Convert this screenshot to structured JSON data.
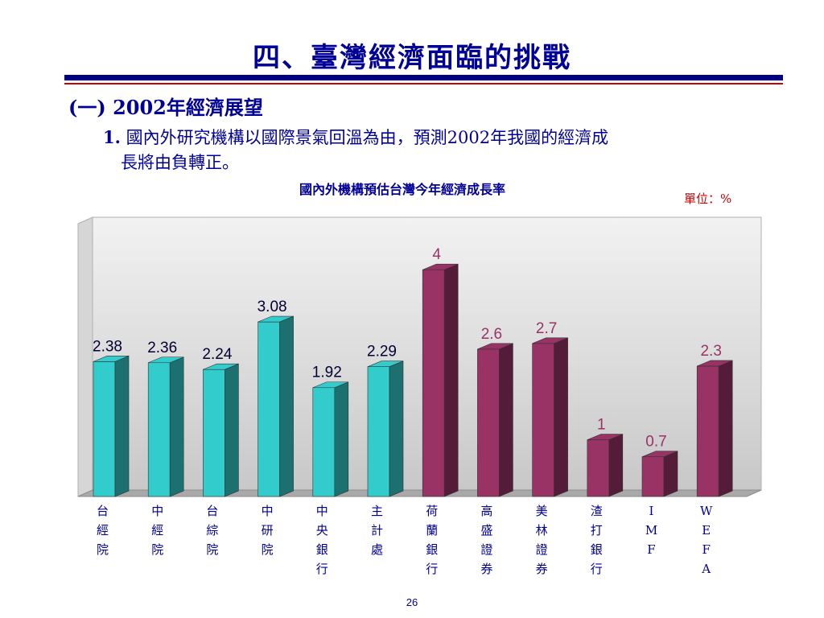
{
  "slide": {
    "title": "四、臺灣經濟面臨的挑戰",
    "section_heading": "(一) 2002年經濟展望",
    "point_number": "1.",
    "point_line1": "國內外研究機構以國際景氣回溫為由，預測2002年我國的經濟成",
    "point_line2": "長將由負轉正。",
    "page_number": "26"
  },
  "colors": {
    "title": "#000099",
    "accent_rule": "#000080",
    "thin_rule": "#cc0000",
    "domestic_bar": "#33cccc",
    "foreign_bar": "#993366",
    "domestic_label": "#000033",
    "foreign_label": "#993366"
  },
  "chart_data": {
    "type": "bar",
    "title": "國內外機構預估台灣今年經濟成長率",
    "unit": "單位：%",
    "categories": [
      "台經院",
      "中經院",
      "台綜院",
      "中研院",
      "中央銀行",
      "主計處",
      "荷蘭銀行",
      "高盛證券",
      "美林證券",
      "渣打銀行",
      "IMF",
      "WEFA"
    ],
    "values": [
      2.38,
      2.36,
      2.24,
      3.08,
      1.92,
      2.29,
      4,
      2.6,
      2.7,
      1,
      0.7,
      2.3
    ],
    "value_labels": [
      "2.38",
      "2.36",
      "2.24",
      "3.08",
      "1.92",
      "2.29",
      "4",
      "2.6",
      "2.7",
      "1",
      "0.7",
      "2.3"
    ],
    "groups": [
      "domestic",
      "domestic",
      "domestic",
      "domestic",
      "domestic",
      "domestic",
      "foreign",
      "foreign",
      "foreign",
      "foreign",
      "foreign",
      "foreign"
    ],
    "ylim": [
      0,
      4.5
    ],
    "grid": false,
    "legend": "none"
  }
}
